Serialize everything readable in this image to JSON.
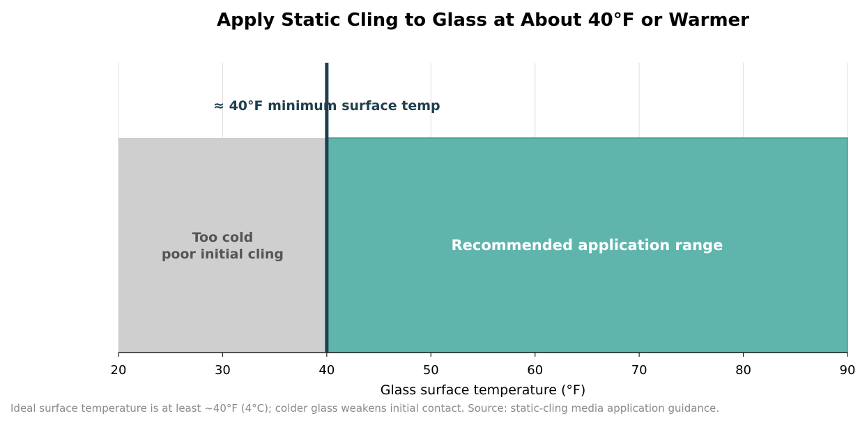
{
  "chart_data": {
    "type": "bar",
    "title": "Apply Static Cling to Glass at About 40°F or Warmer",
    "xlabel": "Glass surface temperature (°F)",
    "ylabel": "",
    "xlim": [
      20,
      90
    ],
    "xticks": [
      20,
      30,
      40,
      50,
      60,
      70,
      80,
      90
    ],
    "grid": "vertical",
    "regions": [
      {
        "label": "Too cold\npoor initial cling",
        "start": 20,
        "end": 40,
        "color": "#cfcfcf"
      },
      {
        "label": "Recommended application range",
        "start": 40,
        "end": 90,
        "color": "#5fb5ab"
      }
    ],
    "threshold": {
      "value": 40,
      "label": "≈ 40°F minimum surface temp",
      "color": "#1f3f4f"
    },
    "footnote": "Ideal surface temperature is at least ~40°F (4°C); colder glass weakens initial contact. Source: static-cling media application guidance."
  }
}
